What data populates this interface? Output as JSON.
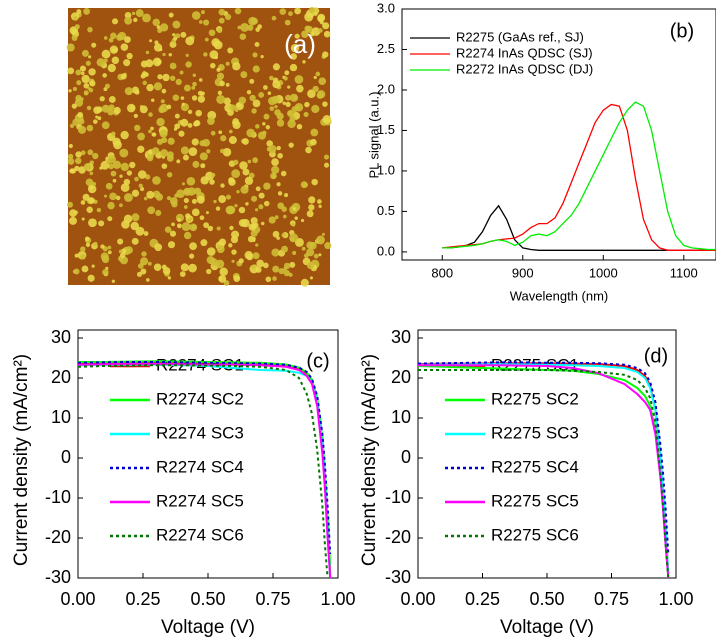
{
  "image_panel": {
    "label": "(a)"
  },
  "chart_data": [
    {
      "type": "line",
      "annotation": "(b)",
      "x_label": "Wavelength (nm)",
      "y_label": "PL signal (a.u.)",
      "x": [
        800,
        810,
        820,
        830,
        840,
        850,
        860,
        870,
        880,
        890,
        900,
        910,
        920,
        930,
        940,
        950,
        960,
        970,
        980,
        990,
        1000,
        1010,
        1020,
        1030,
        1040,
        1050,
        1060,
        1070,
        1080,
        1090,
        1100,
        1110,
        1120,
        1130,
        1140
      ],
      "series": [
        {
          "name": "R2275 (GaAs ref., SJ)",
          "color": "#000000",
          "values": [
            0.05,
            0.05,
            0.06,
            0.08,
            0.12,
            0.25,
            0.45,
            0.57,
            0.4,
            0.15,
            0.05,
            0.03,
            0.02,
            0.02,
            0.02,
            0.02,
            0.02,
            0.02,
            0.02,
            0.02,
            0.02,
            0.02,
            0.02,
            0.02,
            0.02,
            0.02,
            0.02,
            0.02,
            0.02,
            0.02,
            0.02,
            0.02,
            0.02,
            0.02,
            0.02
          ]
        },
        {
          "name": "R2274 InAs QDSC (SJ)",
          "color": "#ff0000",
          "values": [
            0.05,
            0.06,
            0.07,
            0.08,
            0.09,
            0.1,
            0.13,
            0.15,
            0.16,
            0.17,
            0.22,
            0.3,
            0.35,
            0.35,
            0.42,
            0.6,
            0.85,
            1.1,
            1.35,
            1.6,
            1.75,
            1.82,
            1.8,
            1.5,
            0.9,
            0.4,
            0.15,
            0.05,
            0.02,
            0.02,
            0.02,
            0.02,
            0.02,
            0.02,
            0.02
          ]
        },
        {
          "name": "R2272 InAs QDSC (DJ)",
          "color": "#00ee00",
          "values": [
            0.05,
            0.05,
            0.06,
            0.07,
            0.08,
            0.1,
            0.13,
            0.15,
            0.13,
            0.08,
            0.12,
            0.2,
            0.22,
            0.2,
            0.25,
            0.35,
            0.45,
            0.6,
            0.8,
            1.0,
            1.2,
            1.4,
            1.6,
            1.75,
            1.85,
            1.8,
            1.5,
            1.0,
            0.5,
            0.2,
            0.08,
            0.05,
            0.04,
            0.03,
            0.03
          ]
        }
      ],
      "xlim": [
        750,
        1140
      ],
      "xticks": [
        800,
        900,
        1000,
        1100
      ],
      "ylim": [
        -0.1,
        3.0
      ],
      "yticks": [
        {
          "value": 0,
          "label": "0.0"
        },
        {
          "value": 0.5,
          "label": "0.5"
        },
        {
          "value": 1,
          "label": "1.0"
        },
        {
          "value": 1.5,
          "label": "1.5"
        },
        {
          "value": 2,
          "label": "2.0"
        },
        {
          "value": 2.5,
          "label": "2.5"
        },
        {
          "value": 3,
          "label": "3.0"
        }
      ],
      "legend": "upper left"
    },
    {
      "type": "line",
      "annotation": "(c)",
      "x_label": "Voltage (V)",
      "y_label": "Current density (mA/cm²)",
      "x": [
        0,
        0.1,
        0.2,
        0.3,
        0.4,
        0.5,
        0.6,
        0.7,
        0.8,
        0.85,
        0.88,
        0.9,
        0.92,
        0.94,
        0.95,
        0.96,
        0.97,
        0.98,
        0.99,
        1.0
      ],
      "series": [
        {
          "name": "R2274 SC1",
          "color": "#ff0000",
          "values": [
            23.5,
            23.6,
            23.7,
            23.8,
            23.7,
            23.6,
            23.6,
            23.5,
            23.1,
            22.3,
            21,
            19,
            14,
            3,
            -6,
            -17,
            -29,
            null,
            null,
            null
          ]
        },
        {
          "name": "R2274 SC2",
          "color": "#00ff00",
          "values": [
            24,
            24,
            24.1,
            24.2,
            24.1,
            24,
            23.9,
            23.8,
            23.4,
            22.6,
            21.3,
            19.5,
            15,
            5,
            -4,
            -15,
            -27,
            null,
            null,
            null
          ]
        },
        {
          "name": "R2274 SC3",
          "color": "#00ffff",
          "values": [
            23.2,
            23.3,
            23.3,
            23.4,
            23.2,
            23,
            22.5,
            22,
            21.8,
            21.3,
            20.5,
            18.8,
            14,
            3,
            -6,
            -18,
            -30,
            null,
            null,
            null
          ]
        },
        {
          "name": "R2274 SC4",
          "color": "#0000cc",
          "dash": true,
          "values": [
            23.8,
            23.9,
            24,
            24,
            23.9,
            23.8,
            23.7,
            23.6,
            23.3,
            22.6,
            21.5,
            19.8,
            15.5,
            6,
            -2,
            -12,
            -24,
            null,
            null,
            null
          ]
        },
        {
          "name": "R2274 SC5",
          "color": "#ff00ff",
          "values": [
            23.3,
            23.4,
            23.5,
            23.5,
            23.4,
            23.3,
            23.3,
            23.2,
            22.8,
            22,
            20.5,
            18.5,
            13,
            1,
            -8,
            -20,
            -30,
            null,
            null,
            null
          ]
        },
        {
          "name": "R2274 SC6",
          "color": "#007700",
          "dash": true,
          "values": [
            22.8,
            23,
            23.1,
            23.2,
            23.2,
            23.1,
            23,
            22.8,
            22,
            20,
            16,
            11,
            2,
            -12,
            -22,
            -30,
            null,
            null,
            null,
            null
          ]
        }
      ],
      "xlim": [
        0,
        1
      ],
      "xticks": [
        {
          "value": 0,
          "label": "0.00"
        },
        {
          "value": 0.25,
          "label": "0.25"
        },
        {
          "value": 0.5,
          "label": "0.50"
        },
        {
          "value": 0.75,
          "label": "0.75"
        },
        {
          "value": 1,
          "label": "1.00"
        }
      ],
      "ylim": [
        -30,
        32
      ],
      "yticks": [
        -30,
        -20,
        -10,
        0,
        10,
        20,
        30
      ],
      "legend": "center left"
    },
    {
      "type": "line",
      "annotation": "(d)",
      "x_label": "Voltage (V)",
      "y_label": "Current density (mA/cm²)",
      "x": [
        0,
        0.1,
        0.2,
        0.3,
        0.4,
        0.5,
        0.6,
        0.7,
        0.8,
        0.85,
        0.88,
        0.9,
        0.92,
        0.94,
        0.95,
        0.96,
        0.97,
        0.98,
        0.99,
        1.0
      ],
      "series": [
        {
          "name": "R2275 SC1",
          "color": "#ff0000",
          "values": [
            23.5,
            23.6,
            23.6,
            23.7,
            23.7,
            23.7,
            23.6,
            23.5,
            23,
            22,
            20.5,
            18,
            12,
            0,
            -8,
            -18,
            -29,
            null,
            null,
            null
          ]
        },
        {
          "name": "R2275 SC2",
          "color": "#00ff00",
          "values": [
            23,
            22.8,
            22.6,
            22.4,
            22.2,
            22,
            21.8,
            21,
            19.5,
            17.5,
            15.5,
            13,
            7,
            -4,
            -12,
            -21,
            -30,
            null,
            null,
            null
          ]
        },
        {
          "name": "R2275 SC3",
          "color": "#00ffff",
          "values": [
            23.3,
            23.4,
            23.4,
            23.5,
            23.4,
            23.3,
            23.2,
            23,
            22.5,
            21.5,
            20,
            17.5,
            12,
            0,
            -8,
            -18,
            -29,
            null,
            null,
            null
          ]
        },
        {
          "name": "R2275 SC4",
          "color": "#0000cc",
          "dash": true,
          "values": [
            23.6,
            23.7,
            23.8,
            23.9,
            23.9,
            23.8,
            23.8,
            23.7,
            23.3,
            22.5,
            21.2,
            19,
            14,
            3,
            -4,
            -13,
            -24,
            null,
            null,
            null
          ]
        },
        {
          "name": "R2275 SC5",
          "color": "#ff00ff",
          "values": [
            23.2,
            23.2,
            23.2,
            23.2,
            23.1,
            23,
            22.5,
            21.2,
            18.5,
            16,
            14,
            12,
            6,
            -5,
            -13,
            -22,
            -30,
            null,
            null,
            null
          ]
        },
        {
          "name": "R2275 SC6",
          "color": "#007700",
          "dash": true,
          "values": [
            22,
            22,
            22,
            22,
            22,
            22,
            21.8,
            21.5,
            20.8,
            19.5,
            17.5,
            15,
            9,
            -4,
            -12,
            -22,
            -30,
            null,
            null,
            null
          ]
        }
      ],
      "xlim": [
        0,
        1
      ],
      "xticks": [
        {
          "value": 0,
          "label": "0.00"
        },
        {
          "value": 0.25,
          "label": "0.25"
        },
        {
          "value": 0.5,
          "label": "0.50"
        },
        {
          "value": 0.75,
          "label": "0.75"
        },
        {
          "value": 1,
          "label": "1.00"
        }
      ],
      "ylim": [
        -30,
        32
      ],
      "yticks": [
        -30,
        -20,
        -10,
        0,
        10,
        20,
        30
      ],
      "legend": "center left"
    }
  ]
}
